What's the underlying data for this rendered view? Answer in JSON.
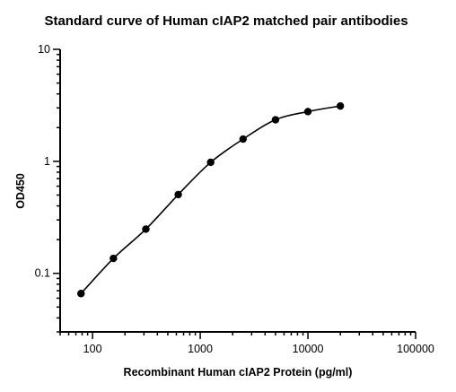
{
  "chart_data": {
    "type": "scatter",
    "title": "Standard curve of Human cIAP2 matched pair antibodies",
    "xlabel": "Recombinant Human cIAP2 Protein (pg/ml)",
    "ylabel": "OD450",
    "x_scale": "log",
    "y_scale": "log",
    "xlim": [
      50,
      100000
    ],
    "ylim": [
      0.03,
      10
    ],
    "x_ticks": [
      {
        "value": 100,
        "label": "100"
      },
      {
        "value": 1000,
        "label": "1000"
      },
      {
        "value": 10000,
        "label": "10000"
      },
      {
        "value": 100000,
        "label": "100000"
      }
    ],
    "y_ticks": [
      {
        "value": 0.1,
        "label": "0.1"
      },
      {
        "value": 1,
        "label": "1"
      },
      {
        "value": 10,
        "label": "10"
      }
    ],
    "grid": false,
    "legend": "none",
    "fit": "sigmoidal curve through points",
    "series": [
      {
        "x": [
          78.125,
          156.25,
          312.5,
          625,
          1250,
          2500,
          5000,
          10000,
          20000
        ],
        "y": [
          0.066,
          0.136,
          0.248,
          0.505,
          0.98,
          1.58,
          2.35,
          2.78,
          3.12
        ]
      }
    ]
  }
}
